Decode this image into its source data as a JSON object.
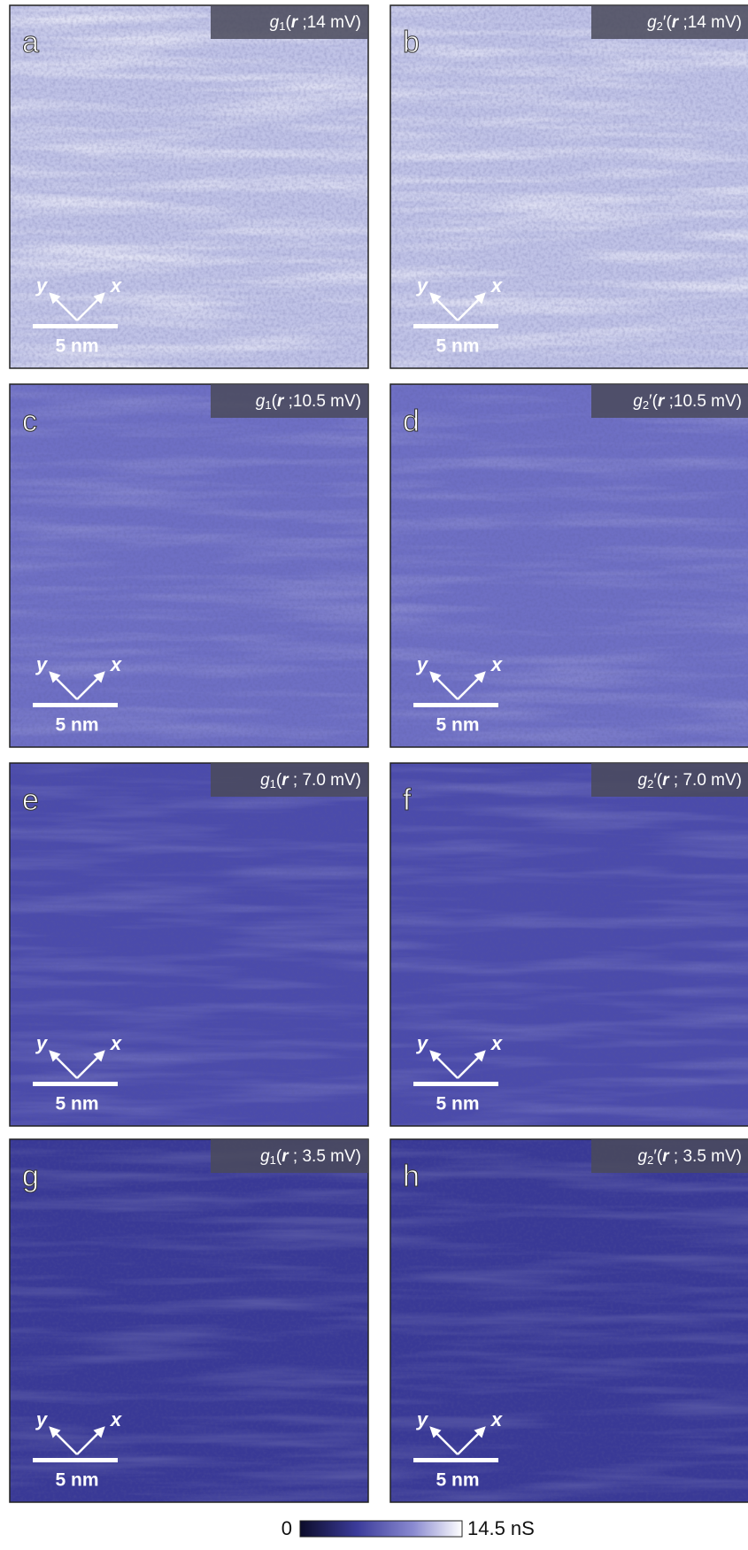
{
  "panels": [
    {
      "letter": "a",
      "label": [
        "g",
        "1",
        "(",
        "r",
        " ;14 mV)"
      ],
      "x_axis": "x",
      "y_axis": "y",
      "scale_bar": "5 nm"
    },
    {
      "letter": "b",
      "label": [
        "g",
        "2",
        "′(",
        "r",
        " ;14 mV)"
      ],
      "x_axis": "x",
      "y_axis": "y",
      "scale_bar": "5 nm"
    },
    {
      "letter": "c",
      "label": [
        "g",
        "1",
        "(",
        "r",
        " ;10.5 mV)"
      ],
      "x_axis": "x",
      "y_axis": "y",
      "scale_bar": "5 nm"
    },
    {
      "letter": "d",
      "label": [
        "g",
        "2",
        "′(",
        "r",
        " ;10.5 mV)"
      ],
      "x_axis": "x",
      "y_axis": "y",
      "scale_bar": "5 nm"
    },
    {
      "letter": "e",
      "label": [
        "g",
        "1",
        "(",
        "r",
        " ; 7.0 mV)"
      ],
      "x_axis": "x",
      "y_axis": "y",
      "scale_bar": "5 nm"
    },
    {
      "letter": "f",
      "label": [
        "g",
        "2",
        "′(",
        "r",
        " ; 7.0 mV)"
      ],
      "x_axis": "x",
      "y_axis": "y",
      "scale_bar": "5 nm"
    },
    {
      "letter": "g",
      "label": [
        "g",
        "1",
        "(",
        "r",
        " ; 3.5 mV)"
      ],
      "x_axis": "x",
      "y_axis": "y",
      "scale_bar": "5 nm"
    },
    {
      "letter": "h",
      "label": [
        "g",
        "2",
        "′(",
        "r",
        " ; 3.5 mV)"
      ],
      "x_axis": "x",
      "y_axis": "y",
      "scale_bar": "5 nm"
    }
  ],
  "colorbar": {
    "min_label": "0",
    "max_label": "14.5 nS"
  }
}
